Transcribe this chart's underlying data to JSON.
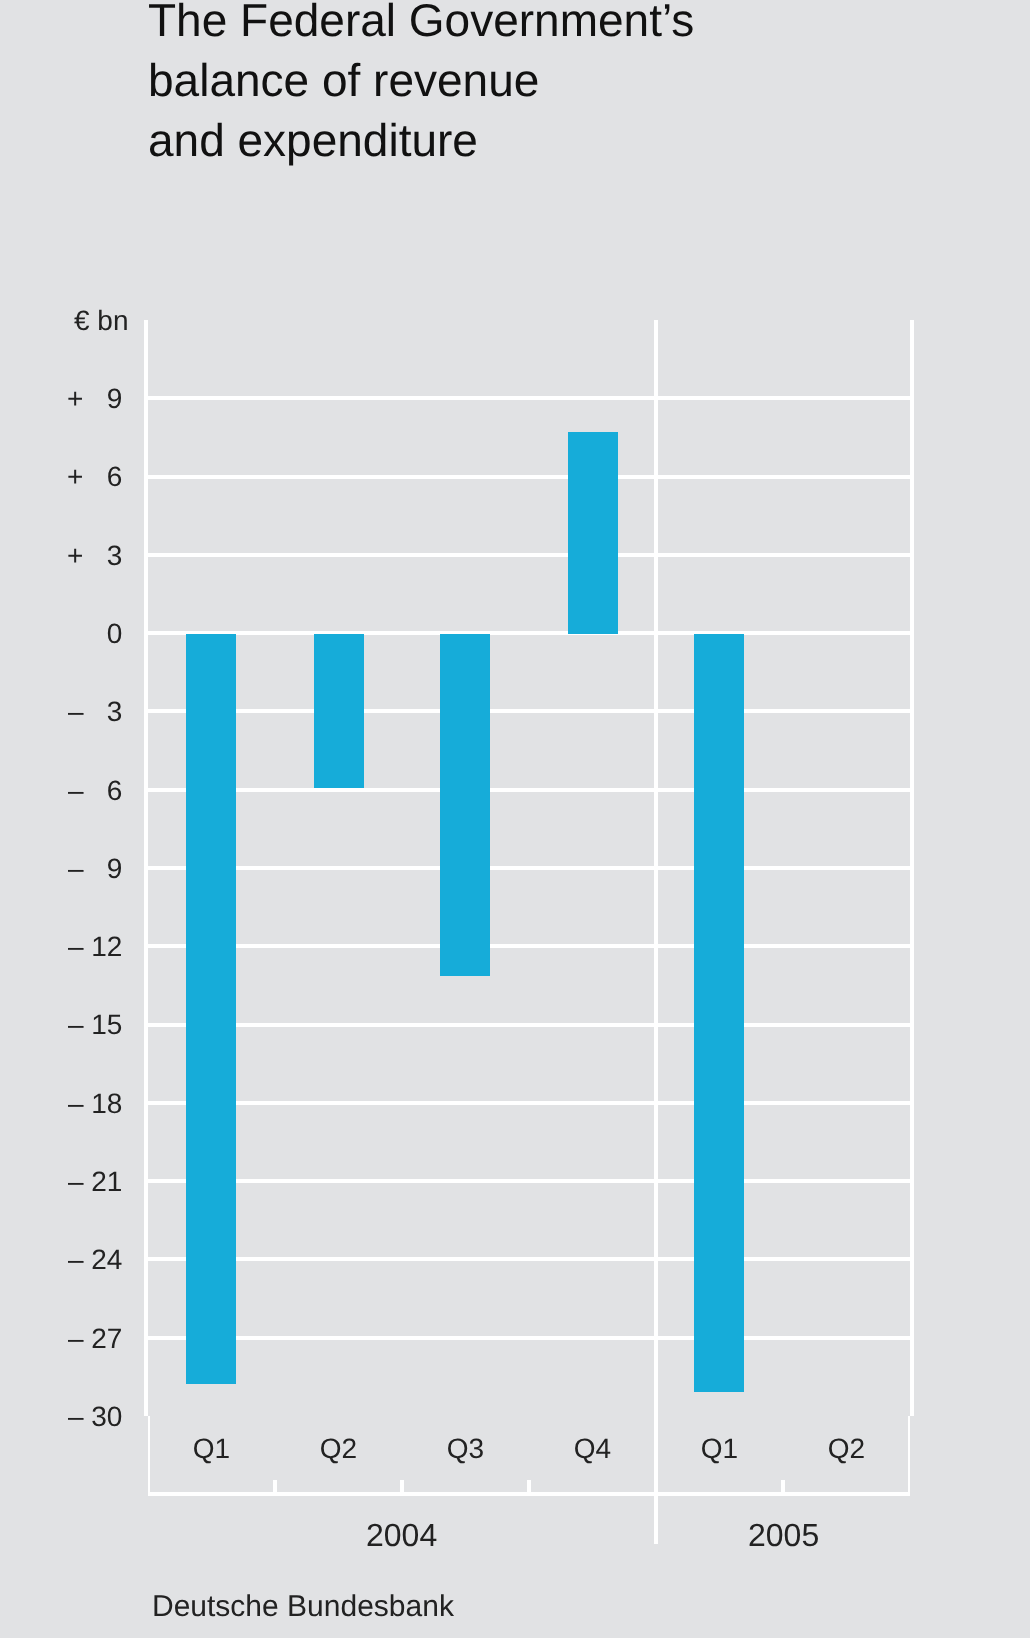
{
  "chart_data": {
    "type": "bar",
    "title": "The Federal Government’s\nbalance of revenue\nand expenditure",
    "ylabel": "€ bn",
    "categories": [
      "Q1",
      "Q2",
      "Q3",
      "Q4",
      "Q1",
      "Q2"
    ],
    "values": [
      -28.8,
      -5.9,
      -13.1,
      7.7,
      -29.1,
      null
    ],
    "color": "#16acd9",
    "ylim": [
      -30,
      12
    ],
    "yticks": [
      {
        "value": 9,
        "label": "+   9"
      },
      {
        "value": 6,
        "label": "+   6"
      },
      {
        "value": 3,
        "label": "+   3"
      },
      0,
      {
        "value": -3,
        "label": "–   3"
      },
      {
        "value": -6,
        "label": "–   6"
      },
      {
        "value": -9,
        "label": "–   9"
      },
      {
        "value": -12,
        "label": "– 12"
      },
      {
        "value": -15,
        "label": "– 15"
      },
      {
        "value": -18,
        "label": "– 18"
      },
      {
        "value": -21,
        "label": "– 21"
      },
      {
        "value": -24,
        "label": "– 24"
      },
      {
        "value": -27,
        "label": "– 27"
      },
      {
        "value": -30,
        "label": "– 30"
      }
    ],
    "grid": "y",
    "annotations": [
      "2004",
      "2005",
      "Deutsche Bundesbank"
    ]
  }
}
